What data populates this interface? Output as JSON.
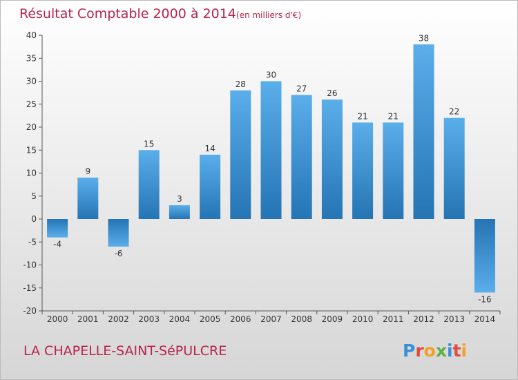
{
  "title": "Résultat Comptable 2000 à 2014",
  "subtitle": "(en milliers d'€)",
  "commune": "LA CHAPELLE-SAINT-SéPULCRE",
  "logo_text": "Proxiti",
  "colors": {
    "title": "#b8234a",
    "bar_light": "#5aaeea",
    "bar_dark": "#2574b4",
    "background_top": "#ffffff",
    "background_bottom": "#d6d6d6"
  },
  "chart_data": {
    "type": "bar",
    "categories": [
      "2000",
      "2001",
      "2002",
      "2003",
      "2004",
      "2005",
      "2006",
      "2007",
      "2008",
      "2009",
      "2010",
      "2011",
      "2012",
      "2013",
      "2014"
    ],
    "values": [
      -4,
      9,
      -6,
      15,
      3,
      14,
      28,
      30,
      27,
      26,
      21,
      21,
      38,
      22,
      -16
    ],
    "ylim": [
      -20,
      40
    ],
    "yticks": [
      -20,
      -15,
      -10,
      -5,
      0,
      5,
      10,
      15,
      20,
      25,
      30,
      35,
      40
    ],
    "grid": false,
    "legend": "none"
  }
}
